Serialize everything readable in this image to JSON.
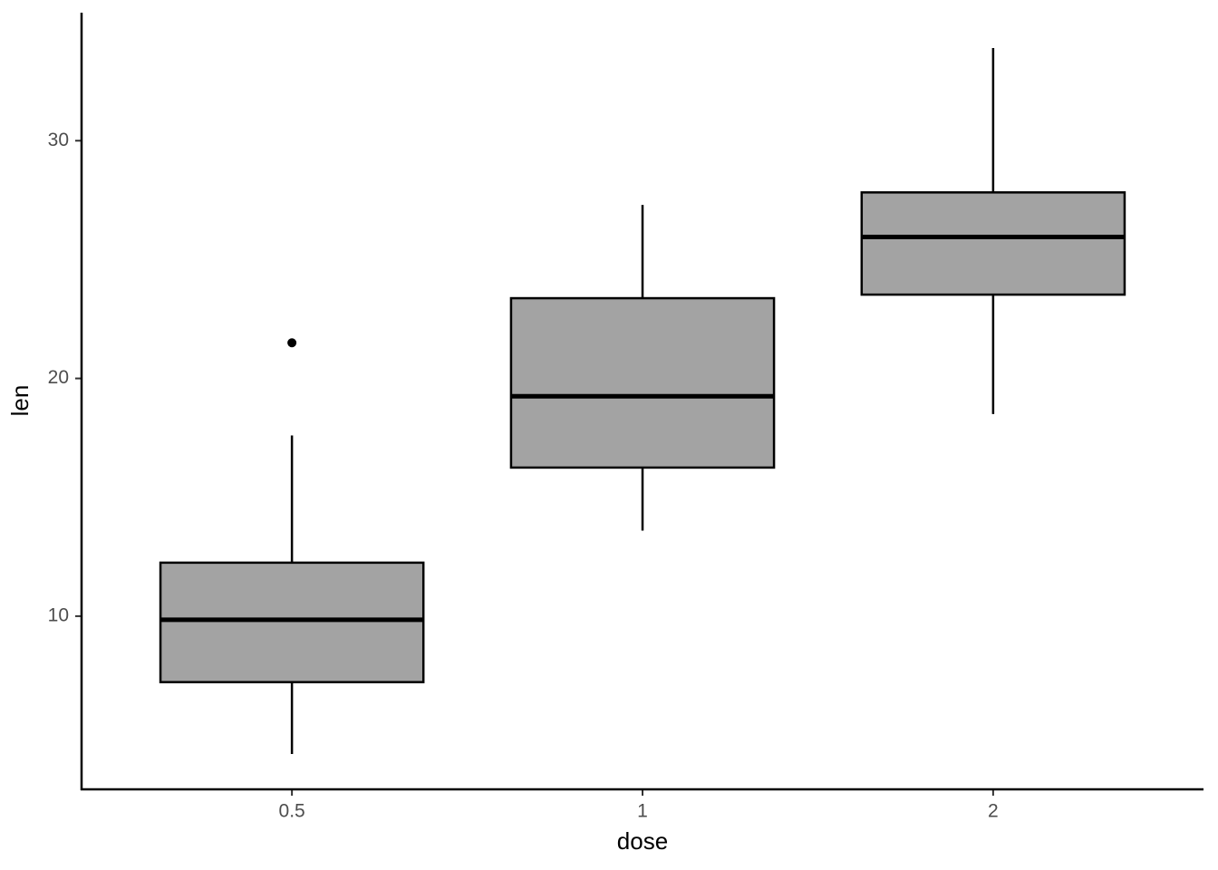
{
  "chart_data": {
    "type": "box",
    "x_label": "dose",
    "y_label": "len",
    "categories": [
      "0.5",
      "1",
      "2"
    ],
    "boxes": [
      {
        "min": 4.2,
        "q1": 7.225,
        "median": 9.85,
        "q3": 12.25,
        "max": 17.6,
        "outliers": [
          21.5
        ]
      },
      {
        "min": 13.6,
        "q1": 16.25,
        "median": 19.25,
        "q3": 23.375,
        "max": 27.3,
        "outliers": []
      },
      {
        "min": 18.5,
        "q1": 23.525,
        "median": 25.95,
        "q3": 27.825,
        "max": 33.9,
        "outliers": []
      }
    ],
    "color": "#a3a3a3",
    "ylim": [
      2.715,
      35.385
    ],
    "yticks": [
      10,
      20,
      30
    ],
    "grid": false
  }
}
